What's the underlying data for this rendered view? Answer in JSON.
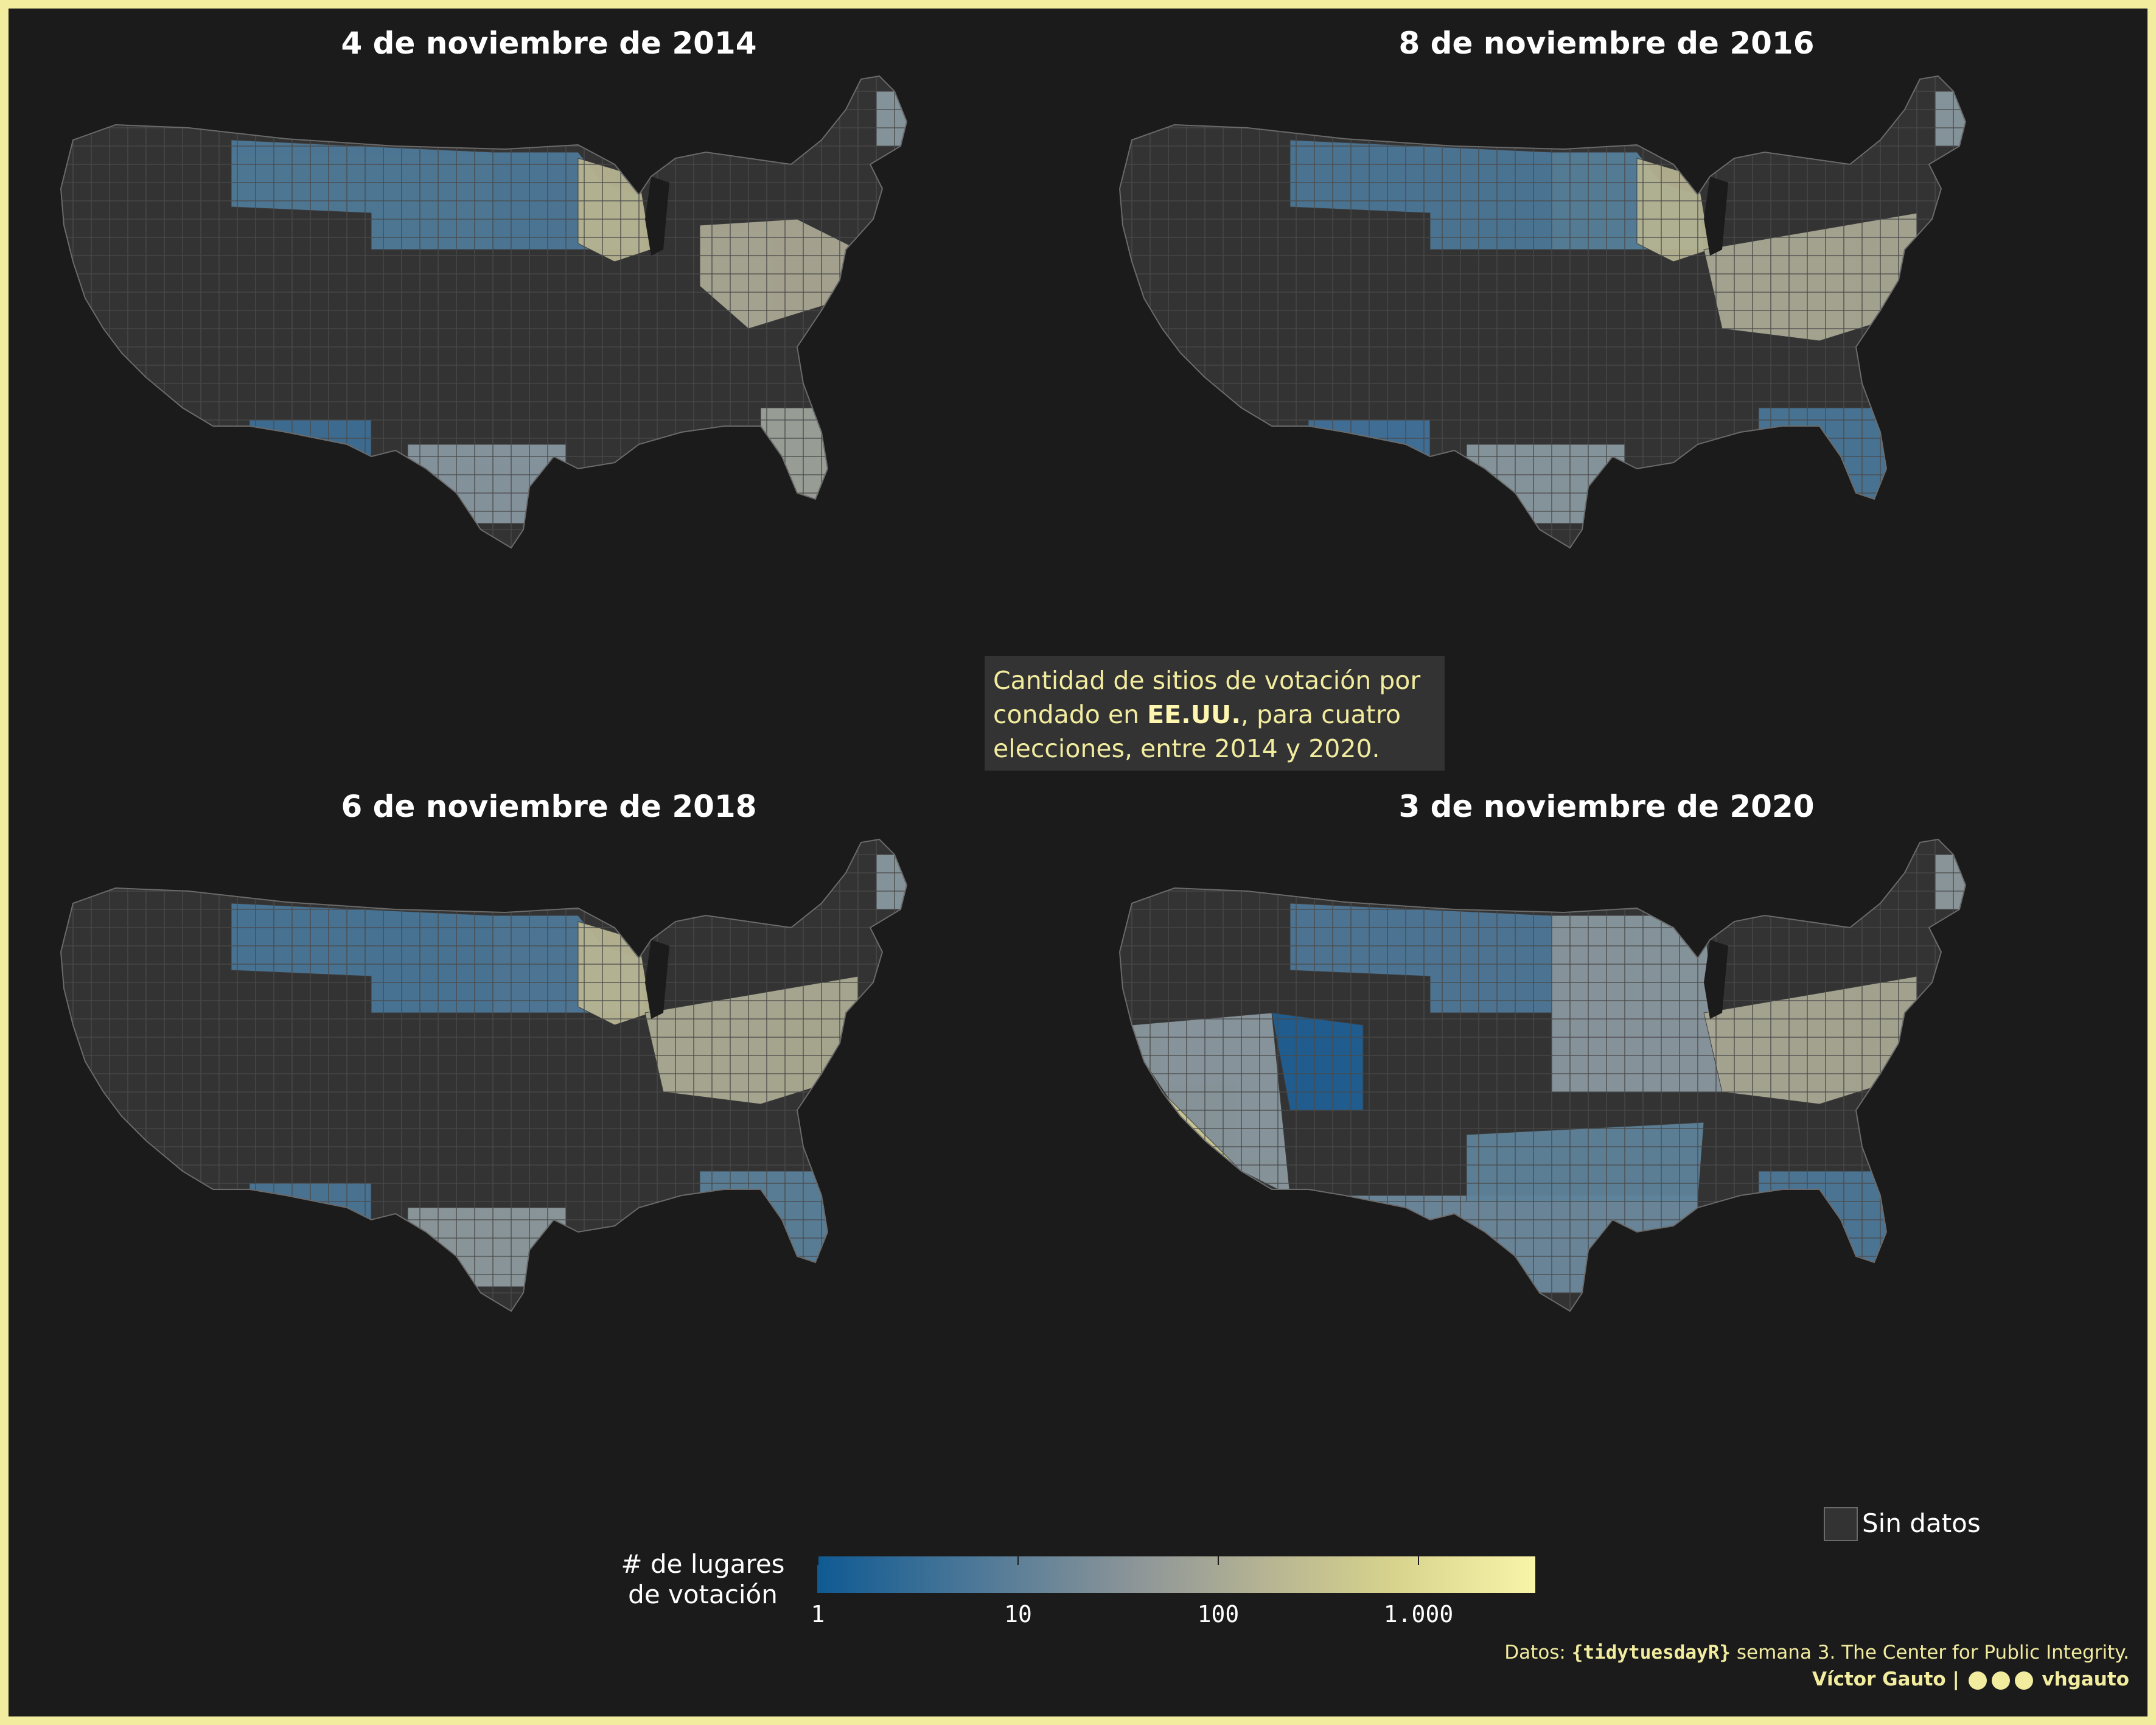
{
  "panels": [
    {
      "title": "4 de noviembre de 2014"
    },
    {
      "title": "8 de noviembre de 2016"
    },
    {
      "title": "6 de noviembre de 2018"
    },
    {
      "title": "3 de noviembre de 2020"
    }
  ],
  "note": {
    "line1": "Cantidad de sitios de votación por",
    "line2_pre": "condado en ",
    "line2_bold": "EE.UU.",
    "line2_post": ", para cuatro",
    "line3": "elecciones, entre 2014 y 2020."
  },
  "legend": {
    "title_line1": "# de lugares",
    "title_line2": "de votación",
    "ticks": [
      "1",
      "10",
      "100",
      "1.000"
    ],
    "no_data_label": "Sin datos"
  },
  "colors": {
    "background": "#1b1b1b",
    "frame": "#f2ec9f",
    "no_data": "#333333",
    "low": "#0f5a93",
    "mid": "#8e9698",
    "high": "#f8f4a8"
  },
  "footer": {
    "source_pre": "Datos: ",
    "source_code": "{tidytuesdayR}",
    "source_post": " semana 3. The Center for Public Integrity.",
    "author": "Víctor Gauto",
    "handle": "vhgauto"
  }
}
